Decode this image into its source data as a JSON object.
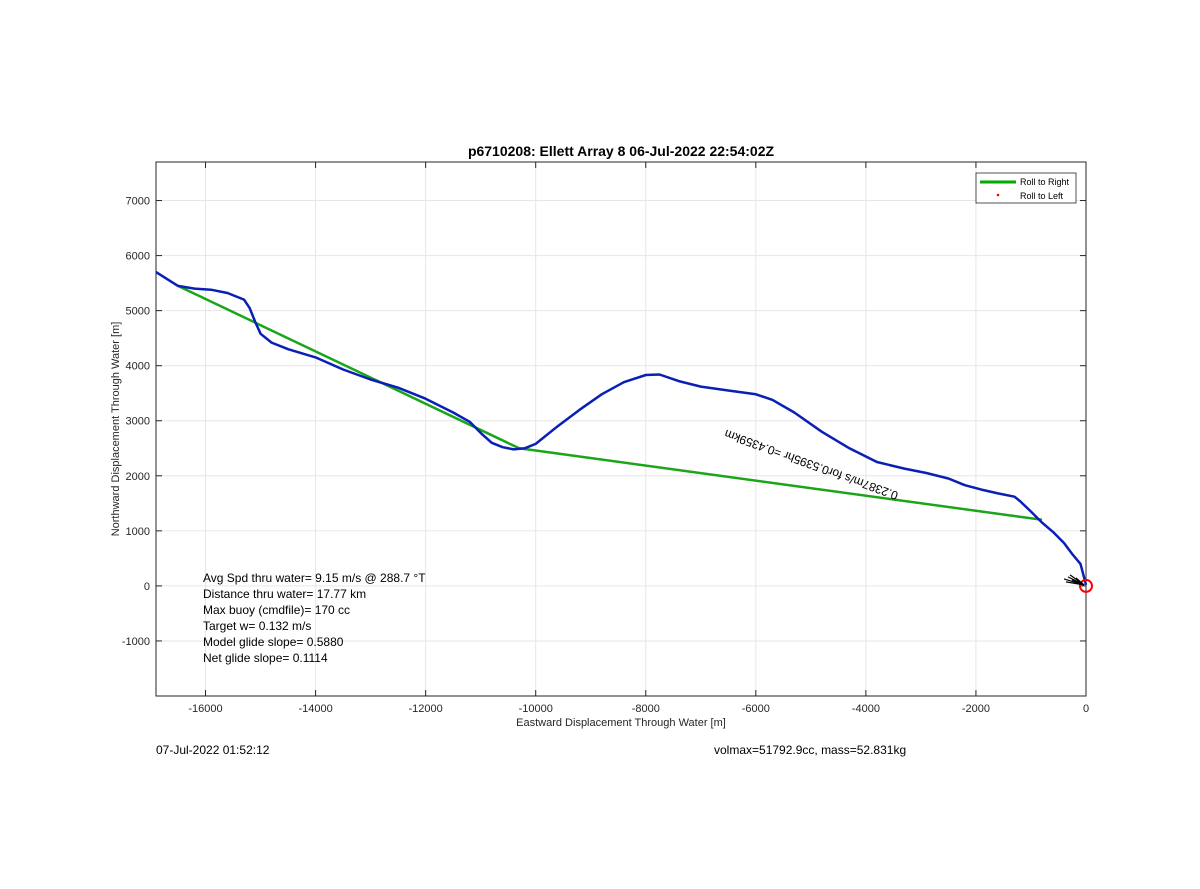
{
  "chart_data": {
    "type": "line",
    "title": "p6710208: Ellett Array 8 06-Jul-2022 22:54:02Z",
    "xlabel": "Eastward Displacement Through Water [m]",
    "ylabel": "Northward Displacement Through Water [m]",
    "xlim": [
      -16900,
      0
    ],
    "ylim": [
      -2000,
      7700
    ],
    "xticks": [
      -16000,
      -14000,
      -12000,
      -10000,
      -8000,
      -6000,
      -4000,
      -2000,
      0
    ],
    "yticks": [
      -1000,
      0,
      1000,
      2000,
      3000,
      4000,
      5000,
      6000,
      7000
    ],
    "grid": true,
    "legend_position": "top-right",
    "legend": [
      {
        "label": "Roll to Right",
        "color": "#00aa00",
        "marker": "line"
      },
      {
        "label": "Roll to Left",
        "color": "#ff0000",
        "marker": "dot"
      }
    ],
    "series": [
      {
        "name": "Roll to Right",
        "color": "#1aa51a",
        "x": [
          -16500,
          -10300,
          -800
        ],
        "y": [
          5450,
          2500,
          1200
        ]
      },
      {
        "color": "#0a1fb5",
        "x": [
          -16900,
          -16500,
          -16200,
          -15900,
          -15600,
          -15300,
          -15200,
          -15100,
          -15000,
          -14800,
          -14500,
          -14000,
          -13500,
          -13000,
          -12500,
          -12000,
          -11500,
          -11200,
          -11000,
          -10800,
          -10600,
          -10400,
          -10200,
          -10000,
          -9600,
          -9200,
          -8800,
          -8400,
          -8000,
          -7750,
          -7400,
          -7000,
          -6500,
          -6000,
          -5700,
          -5300,
          -4800,
          -4300,
          -3800,
          -3300,
          -2900,
          -2500,
          -2200,
          -1900,
          -1600,
          -1300,
          -1200,
          -1000,
          -800,
          -600,
          -400,
          -250,
          -100,
          0
        ],
        "y": [
          5700,
          5450,
          5400,
          5380,
          5320,
          5200,
          5050,
          4800,
          4580,
          4420,
          4300,
          4150,
          3930,
          3750,
          3600,
          3400,
          3150,
          2980,
          2780,
          2600,
          2520,
          2480,
          2500,
          2580,
          2900,
          3200,
          3480,
          3700,
          3830,
          3840,
          3720,
          3620,
          3550,
          3480,
          3380,
          3150,
          2800,
          2500,
          2250,
          2130,
          2050,
          1950,
          1830,
          1750,
          1680,
          1620,
          1540,
          1350,
          1150,
          980,
          780,
          580,
          400,
          20
        ]
      }
    ],
    "marker": {
      "x": 0,
      "y": 0,
      "color": "#ff0000",
      "shape": "circle"
    },
    "rotated_label": "0.2387m/s for0.5395hr =0.4359km",
    "annotations": [
      "Avg Spd thru water=  9.15 m/s @ 288.7 °T",
      "Distance thru water= 17.77 km",
      "Max buoy (cmdfile)= 170 cc",
      "Target w= 0.132 m/s",
      "Model glide slope= 0.5880",
      "Net glide slope= 0.1114"
    ]
  },
  "footer": {
    "left": "07-Jul-2022 01:52:12",
    "right": "volmax=51792.9cc, mass=52.831kg"
  }
}
